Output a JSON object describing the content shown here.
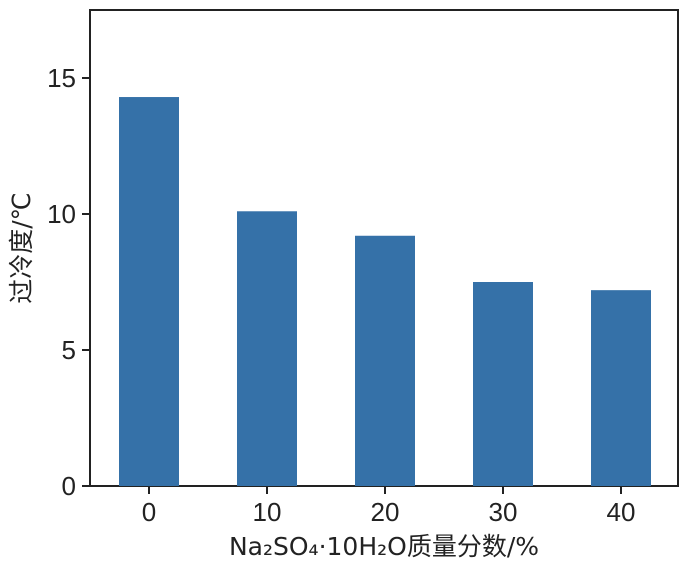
{
  "chart_data": {
    "type": "bar",
    "categories": [
      "0",
      "10",
      "20",
      "30",
      "40"
    ],
    "values": [
      14.3,
      10.1,
      9.2,
      7.5,
      7.2
    ],
    "xlabel": "Na₂SO₄·10H₂O质量分数/%",
    "ylabel": "过冷度/℃",
    "ylim": [
      0,
      17.5
    ],
    "yticks": [
      "0",
      "5",
      "10",
      "15"
    ],
    "ytick_values": [
      0,
      5,
      10,
      15
    ],
    "bar_color": "#3571a8",
    "grid": false,
    "legend": "none"
  }
}
